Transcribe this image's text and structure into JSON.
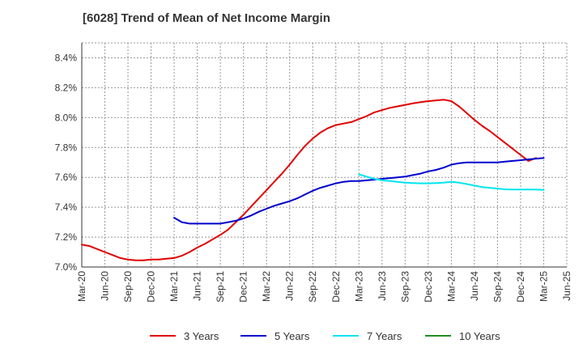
{
  "chart_data": {
    "type": "line",
    "title": "[6028]  Trend of Mean of Net Income Margin",
    "xlabel": "",
    "ylabel": "",
    "x_ticks": [
      "Mar-20",
      "Jun-20",
      "Sep-20",
      "Dec-20",
      "Mar-21",
      "Jun-21",
      "Sep-21",
      "Dec-21",
      "Mar-22",
      "Jun-22",
      "Sep-22",
      "Dec-22",
      "Mar-23",
      "Jun-23",
      "Sep-23",
      "Dec-23",
      "Mar-24",
      "Jun-24",
      "Sep-24",
      "Dec-24",
      "Mar-25",
      "Jun-25"
    ],
    "y_ticks": [
      "7.0%",
      "7.2%",
      "7.4%",
      "7.6%",
      "7.8%",
      "8.0%",
      "8.2%",
      "8.4%"
    ],
    "ylim": [
      7.0,
      8.5
    ],
    "grid": true,
    "legend_position": "bottom",
    "series": [
      {
        "name": "3 Years",
        "color": "#e00000",
        "points": [
          [
            "Mar-20",
            7.15
          ],
          [
            "Apr-20",
            7.14
          ],
          [
            "May-20",
            7.12
          ],
          [
            "Jun-20",
            7.1
          ],
          [
            "Jul-20",
            7.08
          ],
          [
            "Aug-20",
            7.06
          ],
          [
            "Sep-20",
            7.05
          ],
          [
            "Oct-20",
            7.045
          ],
          [
            "Nov-20",
            7.045
          ],
          [
            "Dec-20",
            7.05
          ],
          [
            "Jan-21",
            7.05
          ],
          [
            "Feb-21",
            7.055
          ],
          [
            "Mar-21",
            7.06
          ],
          [
            "Apr-21",
            7.075
          ],
          [
            "May-21",
            7.1
          ],
          [
            "Jun-21",
            7.13
          ],
          [
            "Jul-21",
            7.155
          ],
          [
            "Aug-21",
            7.185
          ],
          [
            "Sep-21",
            7.215
          ],
          [
            "Oct-21",
            7.25
          ],
          [
            "Nov-21",
            7.3
          ],
          [
            "Dec-21",
            7.35
          ],
          [
            "Jan-22",
            7.405
          ],
          [
            "Feb-22",
            7.46
          ],
          [
            "Mar-22",
            7.515
          ],
          [
            "Apr-22",
            7.57
          ],
          [
            "May-22",
            7.625
          ],
          [
            "Jun-22",
            7.685
          ],
          [
            "Jul-22",
            7.75
          ],
          [
            "Aug-22",
            7.81
          ],
          [
            "Sep-22",
            7.86
          ],
          [
            "Oct-22",
            7.9
          ],
          [
            "Nov-22",
            7.93
          ],
          [
            "Dec-22",
            7.95
          ],
          [
            "Jan-23",
            7.96
          ],
          [
            "Feb-23",
            7.97
          ],
          [
            "Mar-23",
            7.99
          ],
          [
            "Apr-23",
            8.01
          ],
          [
            "May-23",
            8.035
          ],
          [
            "Jun-23",
            8.05
          ],
          [
            "Jul-23",
            8.065
          ],
          [
            "Aug-23",
            8.075
          ],
          [
            "Sep-23",
            8.085
          ],
          [
            "Oct-23",
            8.095
          ],
          [
            "Nov-23",
            8.103
          ],
          [
            "Dec-23",
            8.11
          ],
          [
            "Jan-24",
            8.115
          ],
          [
            "Feb-24",
            8.12
          ],
          [
            "Mar-24",
            8.11
          ],
          [
            "Apr-24",
            8.075
          ],
          [
            "May-24",
            8.03
          ],
          [
            "Jun-24",
            7.985
          ],
          [
            "Jul-24",
            7.945
          ],
          [
            "Aug-24",
            7.91
          ],
          [
            "Sep-24",
            7.87
          ],
          [
            "Oct-24",
            7.83
          ],
          [
            "Nov-24",
            7.79
          ],
          [
            "Dec-24",
            7.75
          ],
          [
            "Jan-25",
            7.71
          ],
          [
            "Feb-25",
            7.73
          ]
        ]
      },
      {
        "name": "5 Years",
        "color": "#0000cc",
        "points": [
          [
            "Mar-21",
            7.33
          ],
          [
            "Apr-21",
            7.3
          ],
          [
            "May-21",
            7.29
          ],
          [
            "Jun-21",
            7.29
          ],
          [
            "Jul-21",
            7.29
          ],
          [
            "Aug-21",
            7.29
          ],
          [
            "Sep-21",
            7.29
          ],
          [
            "Oct-21",
            7.3
          ],
          [
            "Nov-21",
            7.31
          ],
          [
            "Dec-21",
            7.325
          ],
          [
            "Jan-22",
            7.345
          ],
          [
            "Feb-22",
            7.37
          ],
          [
            "Mar-22",
            7.39
          ],
          [
            "Apr-22",
            7.41
          ],
          [
            "May-22",
            7.425
          ],
          [
            "Jun-22",
            7.44
          ],
          [
            "Jul-22",
            7.46
          ],
          [
            "Aug-22",
            7.485
          ],
          [
            "Sep-22",
            7.51
          ],
          [
            "Oct-22",
            7.53
          ],
          [
            "Nov-22",
            7.545
          ],
          [
            "Dec-22",
            7.56
          ],
          [
            "Jan-23",
            7.57
          ],
          [
            "Feb-23",
            7.575
          ],
          [
            "Mar-23",
            7.575
          ],
          [
            "Apr-23",
            7.58
          ],
          [
            "May-23",
            7.585
          ],
          [
            "Jun-23",
            7.59
          ],
          [
            "Jul-23",
            7.595
          ],
          [
            "Aug-23",
            7.6
          ],
          [
            "Sep-23",
            7.605
          ],
          [
            "Oct-23",
            7.615
          ],
          [
            "Nov-23",
            7.625
          ],
          [
            "Dec-23",
            7.64
          ],
          [
            "Jan-24",
            7.65
          ],
          [
            "Feb-24",
            7.665
          ],
          [
            "Mar-24",
            7.685
          ],
          [
            "Apr-24",
            7.695
          ],
          [
            "May-24",
            7.7
          ],
          [
            "Jun-24",
            7.7
          ],
          [
            "Jul-24",
            7.7
          ],
          [
            "Aug-24",
            7.7
          ],
          [
            "Sep-24",
            7.7
          ],
          [
            "Oct-24",
            7.705
          ],
          [
            "Nov-24",
            7.71
          ],
          [
            "Dec-24",
            7.715
          ],
          [
            "Jan-25",
            7.72
          ],
          [
            "Feb-25",
            7.725
          ],
          [
            "Mar-25",
            7.73
          ]
        ]
      },
      {
        "name": "7 Years",
        "color": "#00e5ee",
        "points": [
          [
            "Mar-23",
            7.62
          ],
          [
            "Apr-23",
            7.605
          ],
          [
            "May-23",
            7.59
          ],
          [
            "Jun-23",
            7.58
          ],
          [
            "Jul-23",
            7.575
          ],
          [
            "Aug-23",
            7.57
          ],
          [
            "Sep-23",
            7.565
          ],
          [
            "Oct-23",
            7.562
          ],
          [
            "Nov-23",
            7.56
          ],
          [
            "Dec-23",
            7.56
          ],
          [
            "Jan-24",
            7.562
          ],
          [
            "Feb-24",
            7.565
          ],
          [
            "Mar-24",
            7.57
          ],
          [
            "Apr-24",
            7.565
          ],
          [
            "May-24",
            7.555
          ],
          [
            "Jun-24",
            7.545
          ],
          [
            "Jul-24",
            7.535
          ],
          [
            "Aug-24",
            7.53
          ],
          [
            "Sep-24",
            7.525
          ],
          [
            "Oct-24",
            7.52
          ],
          [
            "Nov-24",
            7.518
          ],
          [
            "Dec-24",
            7.518
          ],
          [
            "Jan-25",
            7.518
          ],
          [
            "Feb-25",
            7.518
          ],
          [
            "Mar-25",
            7.516
          ]
        ]
      },
      {
        "name": "10 Years",
        "color": "#228b22",
        "points": []
      }
    ]
  }
}
